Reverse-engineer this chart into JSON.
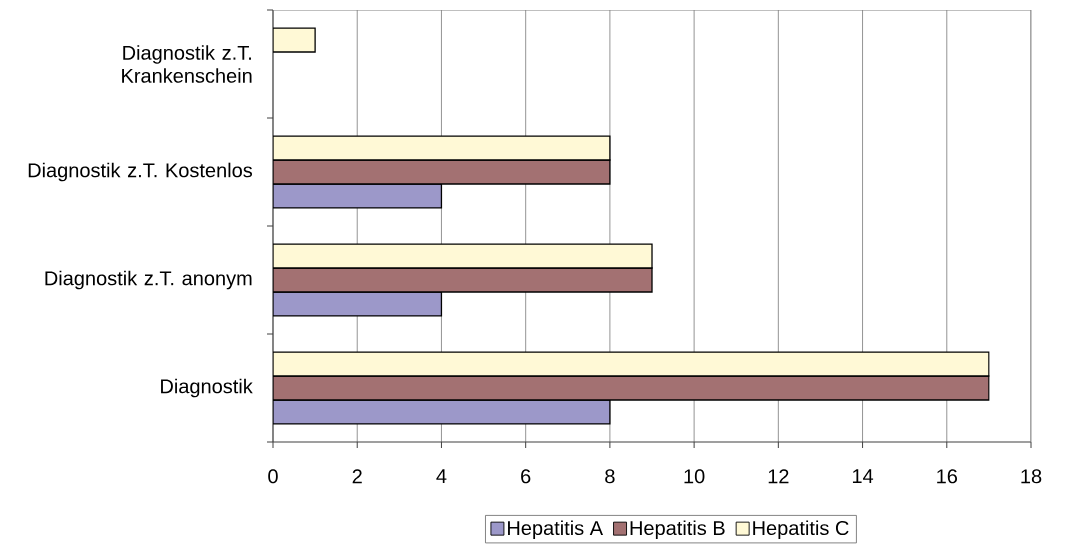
{
  "chart_data": {
    "type": "bar",
    "orientation": "horizontal",
    "categories": [
      "Diagnostik z.T. Krankenschein",
      "Diagnostik z.T. Kostenlos",
      "Diagnostik z.T. anonym",
      "Diagnostik"
    ],
    "series": [
      {
        "name": "Hepatitis A",
        "color": "#9c98c9",
        "values": [
          null,
          4,
          4,
          8
        ]
      },
      {
        "name": "Hepatitis B",
        "color": "#a37172",
        "values": [
          null,
          8,
          9,
          17
        ]
      },
      {
        "name": "Hepatitis C",
        "color": "#fff9d6",
        "values": [
          1,
          8,
          9,
          17
        ]
      }
    ],
    "xlim": [
      0,
      18
    ],
    "xticks": [
      0,
      2,
      4,
      6,
      8,
      10,
      12,
      14,
      16,
      18
    ],
    "grid": "x",
    "legend": "bottom"
  }
}
